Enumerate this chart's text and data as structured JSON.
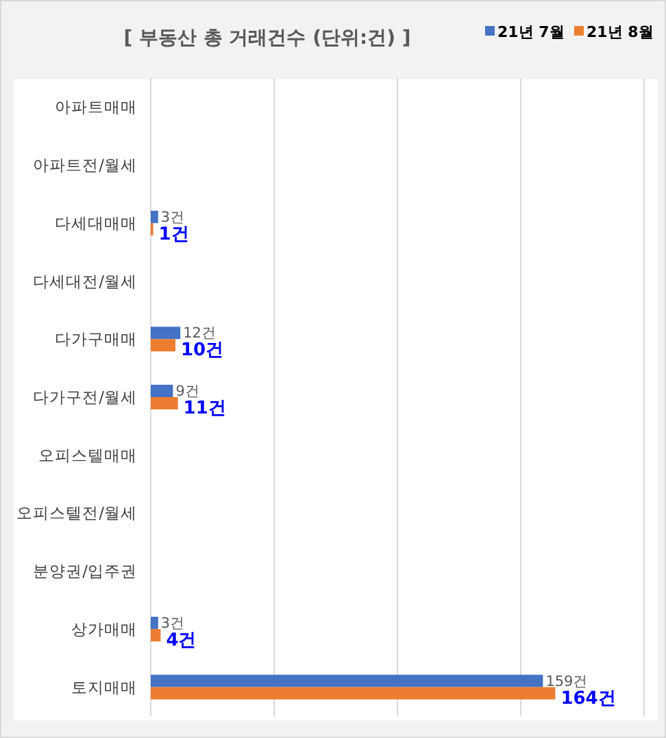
{
  "chart_data": {
    "type": "bar",
    "orientation": "horizontal",
    "title": "[ 부동산 총 거래건수 (단위:건) ]",
    "categories": [
      "아파트매매",
      "아파트전/월세",
      "다세대매매",
      "다세대전/월세",
      "다가구매매",
      "다가구전/월세",
      "오피스텔매매",
      "오피스텔전/월세",
      "분양권/입주권",
      "상가매매",
      "토지매매"
    ],
    "series": [
      {
        "name": "21년 7월",
        "color": "#4472c4",
        "values": [
          null,
          null,
          3,
          null,
          12,
          9,
          null,
          null,
          null,
          3,
          159
        ],
        "value_labels": [
          null,
          null,
          "3건",
          null,
          "12건",
          "9건",
          null,
          null,
          null,
          "3건",
          "159건"
        ]
      },
      {
        "name": "21년 8월",
        "color": "#ed7d31",
        "values": [
          null,
          null,
          1,
          null,
          10,
          11,
          null,
          null,
          null,
          4,
          164
        ],
        "value_labels": [
          null,
          null,
          "1건",
          null,
          "10건",
          "11건",
          null,
          null,
          null,
          "4건",
          "164건"
        ]
      }
    ],
    "xlim": [
      0,
      200
    ],
    "xticks": [
      {
        "value": 0,
        "label": null
      },
      {
        "value": 50,
        "label": null
      },
      {
        "value": 100,
        "label": null
      },
      {
        "value": 150,
        "label": null
      },
      {
        "value": 200,
        "label": null
      }
    ],
    "grid": "x",
    "legend": "top right",
    "tick_labels": "y"
  }
}
